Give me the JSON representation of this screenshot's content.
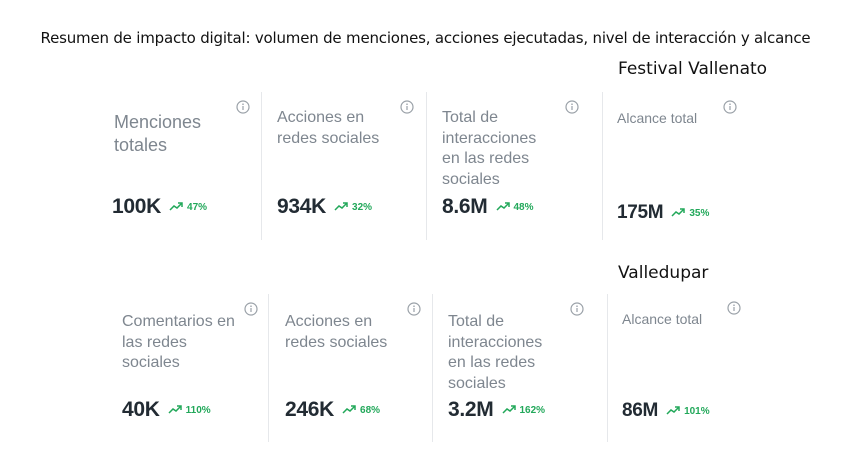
{
  "title": "Resumen de impacto digital: volumen de menciones, acciones ejecutadas, nivel de interacción y alcance",
  "colors": {
    "label": "#7e868f",
    "value": "#222b33",
    "trend_up": "#22a85a",
    "divider": "#e6e8eb",
    "info_icon": "#9aa1a8"
  },
  "sections": [
    {
      "name": "Festival Vallenato",
      "cards": [
        {
          "label": "Menciones totales",
          "value": "100K",
          "change": "47%",
          "trend": "up"
        },
        {
          "label": "Acciones en redes sociales",
          "value": "934K",
          "change": "32%",
          "trend": "up"
        },
        {
          "label": "Total de interacciones en las redes sociales",
          "value": "8.6M",
          "change": "48%",
          "trend": "up"
        },
        {
          "label": "Alcance total",
          "value": "175M",
          "change": "35%",
          "trend": "up"
        }
      ]
    },
    {
      "name": "Valledupar",
      "cards": [
        {
          "label": "Comentarios en las redes sociales",
          "value": "40K",
          "change": "110%",
          "trend": "up"
        },
        {
          "label": "Acciones en redes sociales",
          "value": "246K",
          "change": "68%",
          "trend": "up"
        },
        {
          "label": "Total de interacciones en las redes sociales",
          "value": "3.2M",
          "change": "162%",
          "trend": "up"
        },
        {
          "label": "Alcance total",
          "value": "86M",
          "change": "101%",
          "trend": "up"
        }
      ]
    }
  ]
}
